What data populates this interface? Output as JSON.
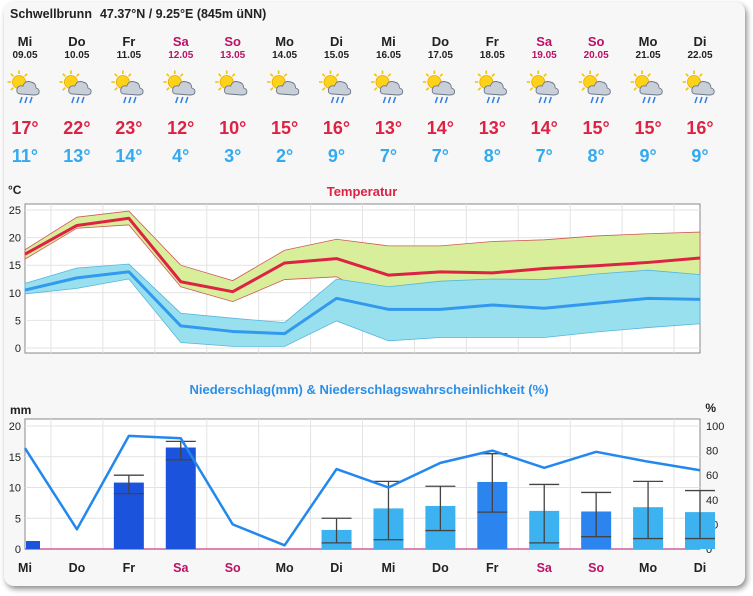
{
  "header": {
    "title": "Schwellbrunn",
    "coords": "47.37°N / 9.25°E (845m üNN)"
  },
  "days": [
    {
      "day": "Mi",
      "date": "09.05",
      "weekend": false,
      "icon": "sun-cloud-rain-icon",
      "tmax": "17°",
      "tmin": "11°"
    },
    {
      "day": "Do",
      "date": "10.05",
      "weekend": false,
      "icon": "sun-cloud-rain-icon",
      "tmax": "22°",
      "tmin": "13°"
    },
    {
      "day": "Fr",
      "date": "11.05",
      "weekend": false,
      "icon": "sun-cloud-rain-icon",
      "tmax": "23°",
      "tmin": "14°"
    },
    {
      "day": "Sa",
      "date": "12.05",
      "weekend": true,
      "icon": "sun-cloud-rain-icon",
      "tmax": "12°",
      "tmin": "4°"
    },
    {
      "day": "So",
      "date": "13.05",
      "weekend": true,
      "icon": "sun-cloud-icon",
      "tmax": "10°",
      "tmin": "3°"
    },
    {
      "day": "Mo",
      "date": "14.05",
      "weekend": false,
      "icon": "sun-cloud-icon",
      "tmax": "15°",
      "tmin": "2°"
    },
    {
      "day": "Di",
      "date": "15.05",
      "weekend": false,
      "icon": "sun-cloud-rain-icon",
      "tmax": "16°",
      "tmin": "9°"
    },
    {
      "day": "Mi",
      "date": "16.05",
      "weekend": false,
      "icon": "sun-cloud-rain-icon",
      "tmax": "13°",
      "tmin": "7°"
    },
    {
      "day": "Do",
      "date": "17.05",
      "weekend": false,
      "icon": "sun-cloud-rain-icon",
      "tmax": "14°",
      "tmin": "7°"
    },
    {
      "day": "Fr",
      "date": "18.05",
      "weekend": false,
      "icon": "sun-cloud-rain-icon",
      "tmax": "13°",
      "tmin": "8°"
    },
    {
      "day": "Sa",
      "date": "19.05",
      "weekend": true,
      "icon": "sun-cloud-rain-icon",
      "tmax": "14°",
      "tmin": "7°"
    },
    {
      "day": "So",
      "date": "20.05",
      "weekend": true,
      "icon": "sun-cloud-rain-icon",
      "tmax": "15°",
      "tmin": "8°"
    },
    {
      "day": "Mo",
      "date": "21.05",
      "weekend": false,
      "icon": "sun-cloud-rain-icon",
      "tmax": "15°",
      "tmin": "9°"
    },
    {
      "day": "Di",
      "date": "22.05",
      "weekend": false,
      "icon": "sun-cloud-rain-icon",
      "tmax": "16°",
      "tmin": "9°"
    }
  ],
  "colors": {
    "max": "#dd2244",
    "min": "#33aaee",
    "weekend": "#bb1166",
    "band_max": "#d8ee9a",
    "band_min": "#99e0ee",
    "line_min": "#3399ee",
    "bar_dark": "#1b53dd",
    "bar_mid": "#2c85ee",
    "bar_light": "#3cb3f0",
    "prob_line": "#2288ee"
  },
  "chart_data": [
    {
      "type": "line",
      "title": "Temperatur",
      "ylabel": "°C",
      "ylim": [
        0,
        25
      ],
      "yticks": [
        "0",
        "5",
        "10",
        "15",
        "20",
        "25"
      ],
      "categories": [
        "Mi",
        "Do",
        "Fr",
        "Sa",
        "So",
        "Mo",
        "Di",
        "Mi",
        "Do",
        "Fr",
        "Sa",
        "So",
        "Mo",
        "Di"
      ],
      "series": [
        {
          "role": "max",
          "values": [
            17,
            22.2,
            23.5,
            12,
            10.2,
            15.4,
            16.2,
            13.2,
            13.8,
            13.6,
            14.4,
            14.9,
            15.5,
            16.3
          ]
        },
        {
          "role": "min",
          "values": [
            10.5,
            12.7,
            13.8,
            4,
            3,
            2.6,
            9,
            7,
            7,
            7.8,
            7.2,
            8.1,
            9,
            8.8
          ]
        },
        {
          "role": "max-band-upper",
          "values": [
            17.8,
            23.7,
            24.8,
            15,
            12.2,
            17.7,
            19.7,
            18.5,
            18.5,
            19.3,
            19.6,
            20.3,
            20.7,
            21
          ]
        },
        {
          "role": "max-band-lower",
          "values": [
            16.1,
            21.7,
            22.3,
            11.1,
            8.4,
            12.4,
            12.9,
            8,
            9.8,
            11.3,
            12.3,
            13.1,
            13.9,
            13
          ]
        },
        {
          "role": "min-band-upper",
          "values": [
            11.7,
            14.5,
            15.2,
            6.3,
            5.4,
            4.6,
            12.5,
            11.1,
            12.1,
            12.5,
            12.4,
            13.4,
            14.1,
            13.3
          ]
        },
        {
          "role": "min-band-lower",
          "values": [
            9.8,
            10.8,
            12.5,
            1,
            0.3,
            0.3,
            4.9,
            1.3,
            1.9,
            1.9,
            1.9,
            2.9,
            3.7,
            4.4
          ]
        }
      ],
      "grid": true
    },
    {
      "type": "bar",
      "title": "Niederschlag(mm) & Niederschlagswahrscheinlichkeit (%)",
      "ylabel": "mm",
      "y2label": "%",
      "ylim": [
        0,
        20
      ],
      "y2lim": [
        0,
        100
      ],
      "yticks": [
        "0",
        "5",
        "10",
        "15",
        "20"
      ],
      "y2ticks": [
        "0",
        "20",
        "40",
        "60",
        "80",
        "100"
      ],
      "categories": [
        "Mi",
        "Do",
        "Fr",
        "Sa",
        "So",
        "Mo",
        "Di",
        "Mi",
        "Do",
        "Fr",
        "Sa",
        "So",
        "Mo",
        "Di"
      ],
      "series": [
        {
          "role": "precip_mm",
          "values": [
            1.3,
            0,
            10.8,
            16.5,
            0,
            0,
            3.1,
            6.6,
            7,
            10.9,
            6.2,
            6.1,
            6.8,
            6
          ]
        },
        {
          "role": "precip_high",
          "values": [
            1.3,
            0,
            12,
            17.5,
            0,
            0,
            5,
            11,
            10.2,
            15.5,
            10.5,
            9.2,
            11,
            9.5
          ]
        },
        {
          "role": "precip_low",
          "values": [
            1.3,
            0,
            9,
            14.5,
            0,
            0,
            1,
            1.5,
            3,
            6,
            1,
            2,
            1.7,
            1.7
          ]
        },
        {
          "role": "bar_shade",
          "values": [
            "dark",
            "none",
            "dark",
            "dark",
            "none",
            "none",
            "light",
            "light",
            "light",
            "mid",
            "light",
            "mid",
            "light",
            "light"
          ]
        },
        {
          "role": "probability_pct",
          "values": [
            82,
            16,
            92,
            90,
            20,
            3,
            65,
            50,
            70,
            80,
            66,
            79,
            71,
            64
          ]
        }
      ],
      "grid": true
    }
  ]
}
